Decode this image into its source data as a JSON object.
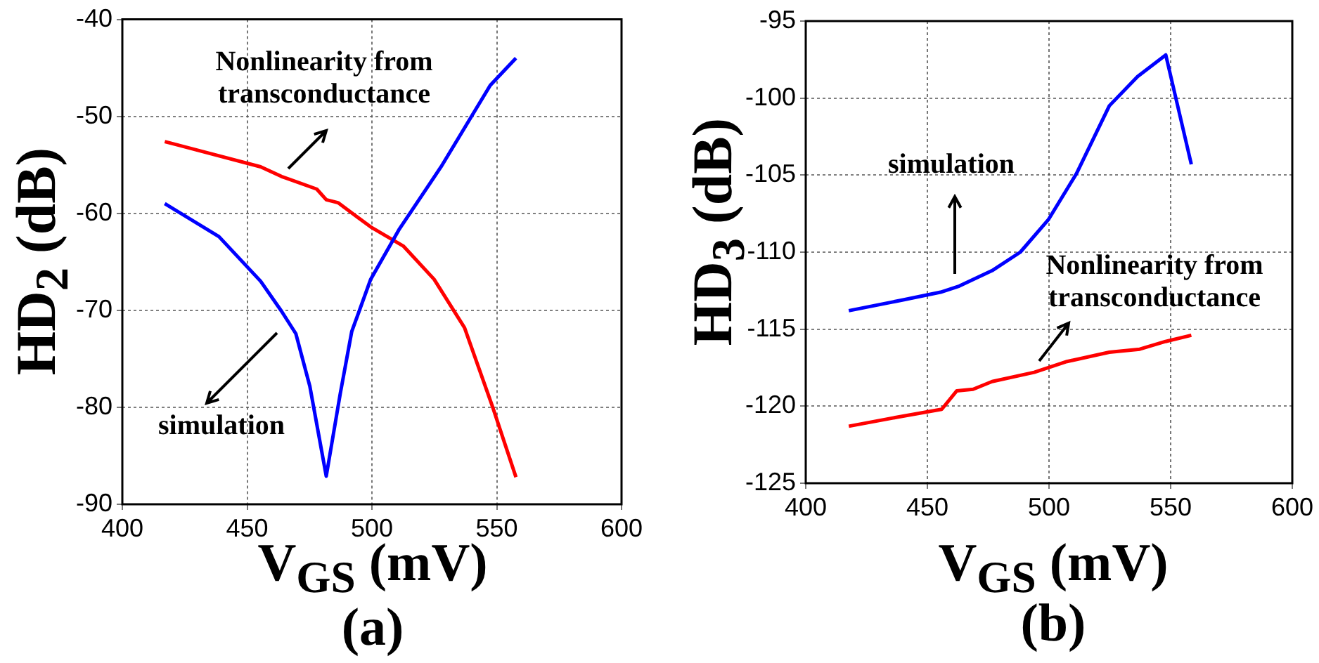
{
  "chart_data": [
    {
      "type": "line",
      "xlabel": "V$_{GS}$ (mV)",
      "ylabel": "HD$_{2}$ (dB)",
      "annotations": [
        "(a)"
      ],
      "xlim": [
        400,
        600
      ],
      "xticks": [
        400,
        450,
        500,
        550,
        600
      ],
      "ylim": [
        -90,
        -40
      ],
      "yticks": [
        -90,
        -80,
        -70,
        -60,
        -50,
        -40
      ],
      "grid": true,
      "series": [
        {
          "name": "simulation",
          "color": "#0000ff",
          "x": [
            417,
            438.7,
            455.4,
            463.8,
            469.5,
            475.1,
            481.7,
            487.3,
            491.9,
            499.5,
            510.8,
            527.7,
            547.4,
            557.7
          ],
          "values": [
            -59,
            -62.4,
            -67,
            -70.1,
            -72.4,
            -77.8,
            -87.1,
            -78.6,
            -72.2,
            -66.8,
            -61.7,
            -55.2,
            -46.8,
            -44
          ]
        },
        {
          "name": "Nonlinearity from transconductance",
          "color": "#ff0000",
          "x": [
            417,
            455.4,
            463.8,
            477.9,
            481.7,
            486.4,
            499.5,
            512.7,
            524.9,
            537.1,
            548.4,
            557.7
          ],
          "values": [
            -52.6,
            -55.2,
            -56.2,
            -57.5,
            -58.6,
            -58.9,
            -61.4,
            -63.4,
            -66.8,
            -71.8,
            -80,
            -87.2
          ]
        }
      ]
    },
    {
      "type": "line",
      "xlabel": "V$_{GS}$ (mV)",
      "ylabel": "HD$_{3}$ (dB)",
      "annotations": [
        "(b)"
      ],
      "xlim": [
        400,
        600
      ],
      "xticks": [
        400,
        450,
        500,
        550,
        600
      ],
      "ylim": [
        -125,
        -95
      ],
      "yticks": [
        -125,
        -120,
        -115,
        -110,
        -105,
        -100,
        -95
      ],
      "grid": true,
      "series": [
        {
          "name": "simulation",
          "color": "#0000ff",
          "x": [
            417.7,
            440,
            455.4,
            463.1,
            476.6,
            488.2,
            499.7,
            511.3,
            524.8,
            536.4,
            548,
            558.5
          ],
          "values": [
            -113.8,
            -113.1,
            -112.6,
            -112.2,
            -111.2,
            -110,
            -107.9,
            -104.9,
            -100.5,
            -98.6,
            -97.2,
            -104.3
          ]
        },
        {
          "name": "Nonlinearity from transconductance",
          "color": "#ff0000",
          "x": [
            417.7,
            438,
            455.9,
            462.1,
            468.8,
            476.6,
            493.9,
            507.4,
            524.8,
            537.3,
            547.9,
            558.5
          ],
          "values": [
            -121.3,
            -120.7,
            -120.2,
            -119,
            -118.9,
            -118.4,
            -117.8,
            -117.1,
            -116.5,
            -116.3,
            -115.8,
            -115.4
          ]
        }
      ]
    }
  ]
}
